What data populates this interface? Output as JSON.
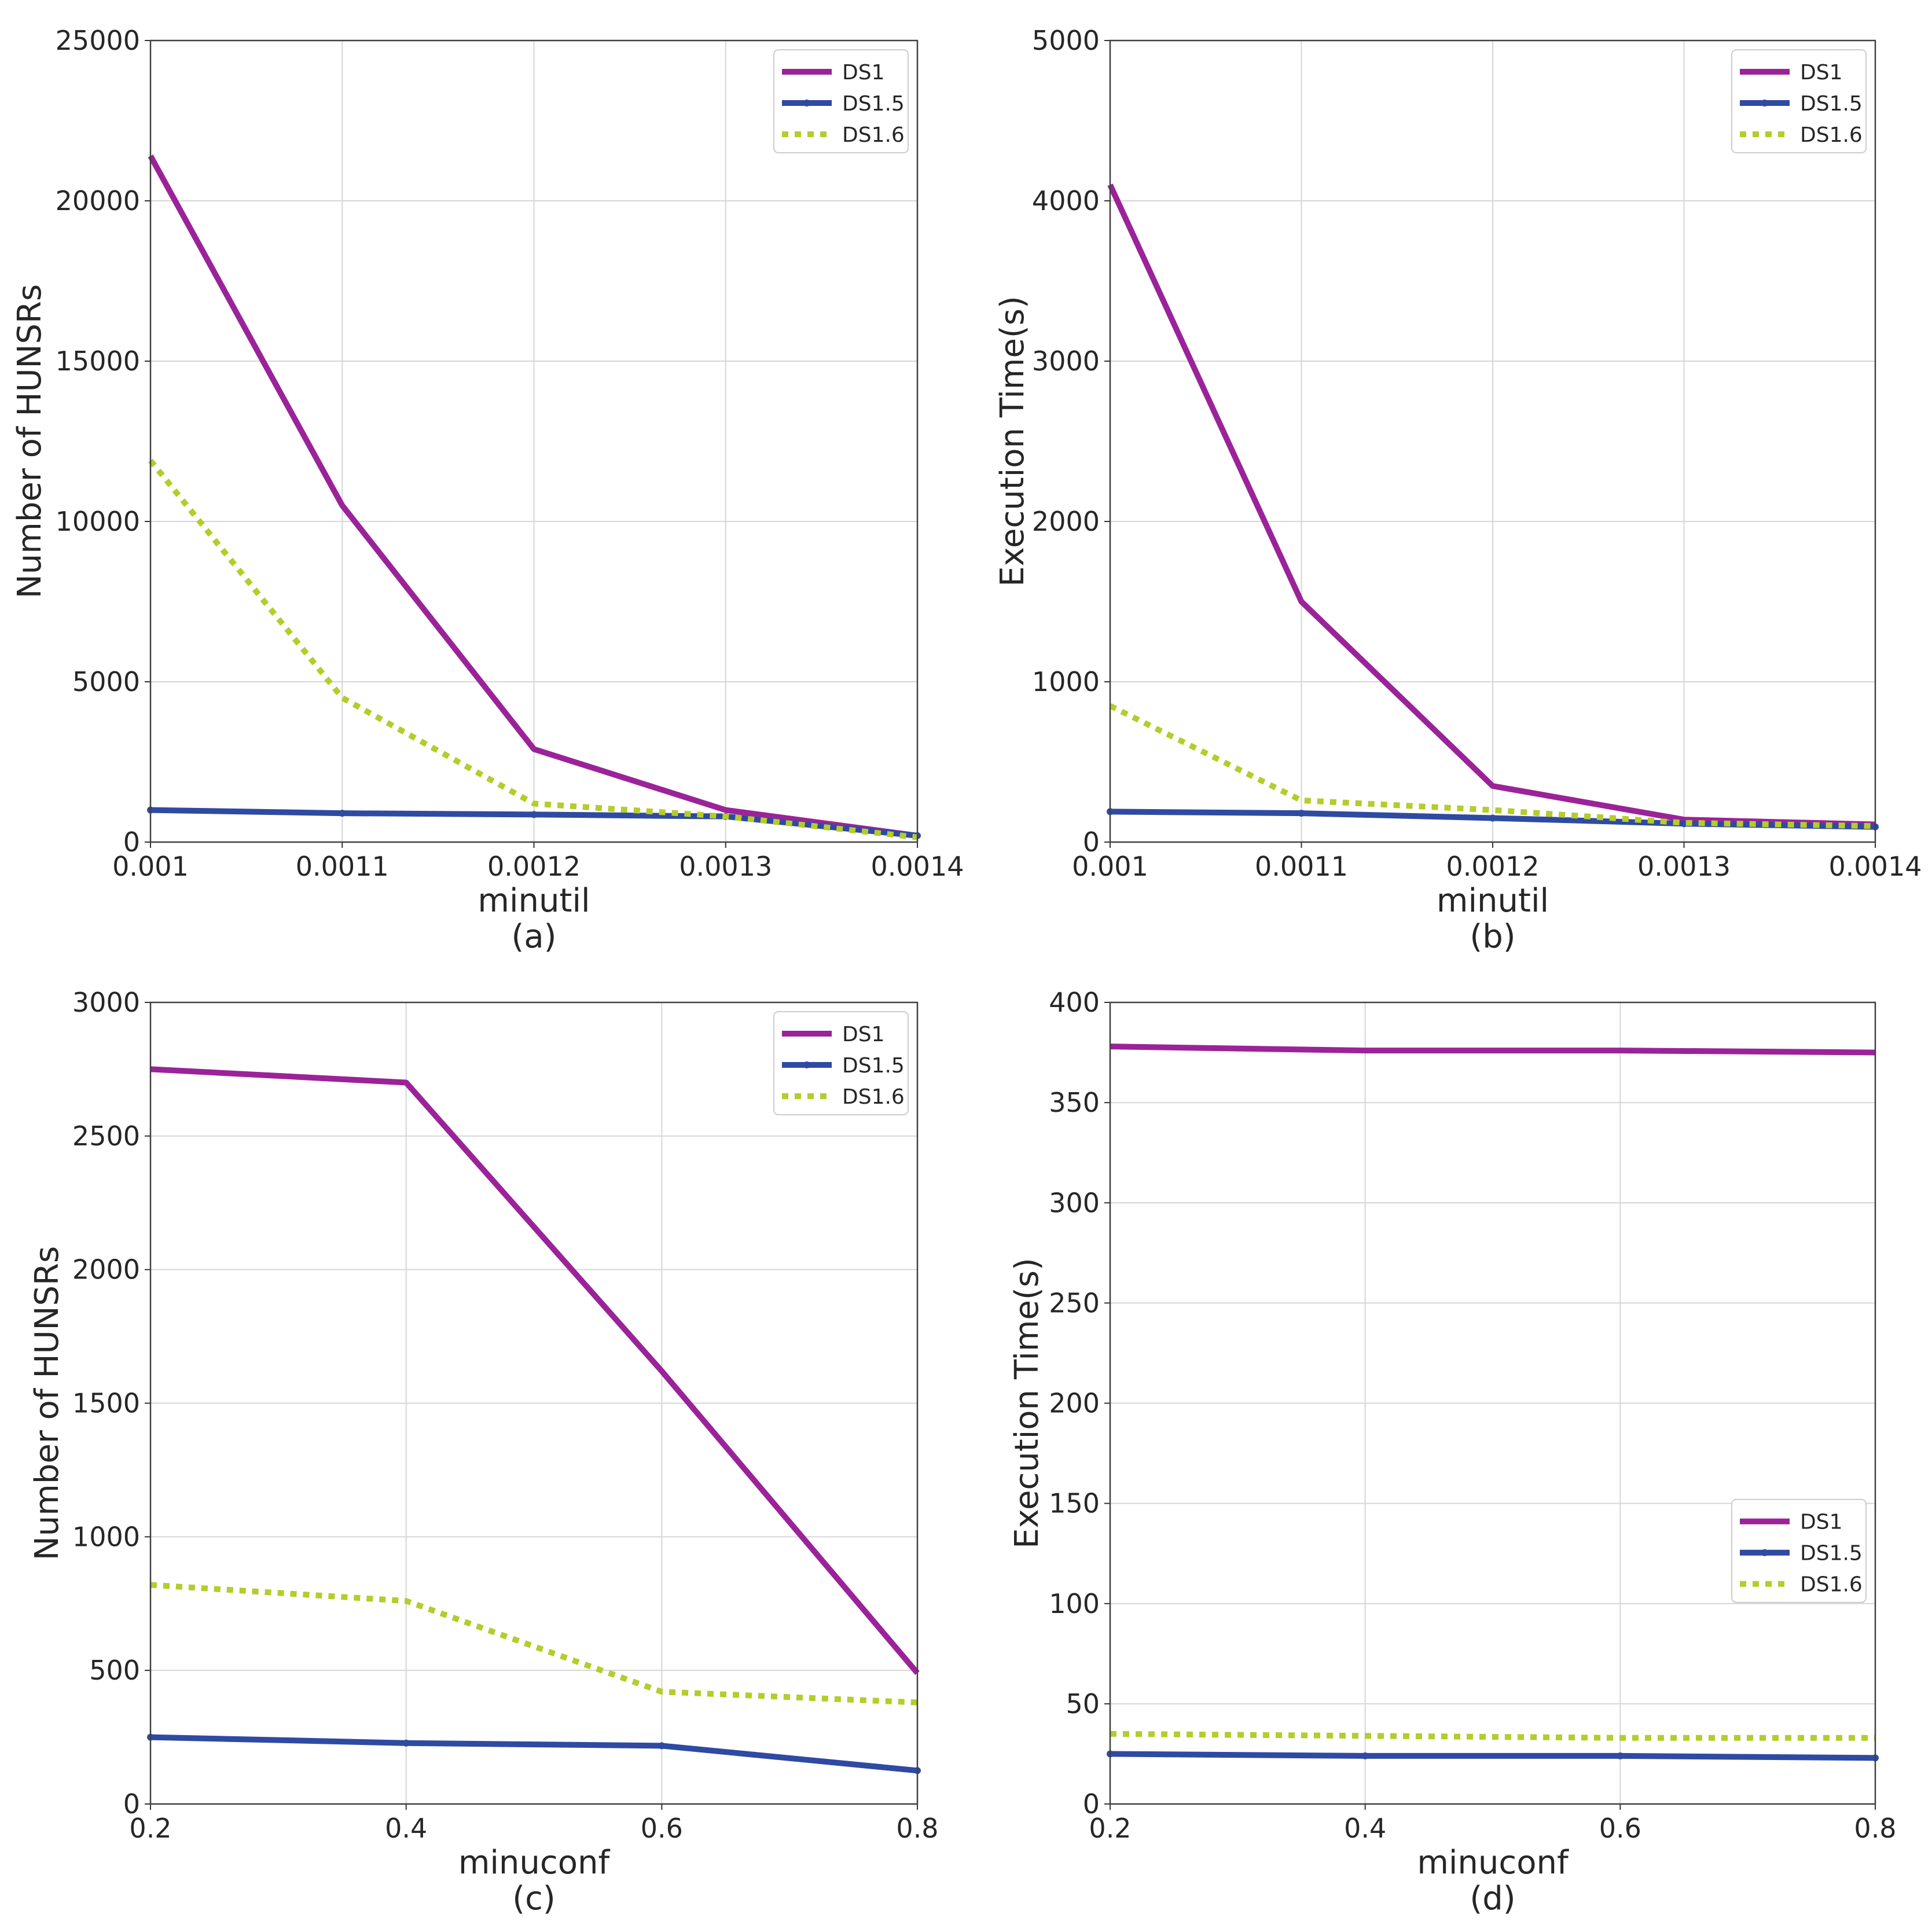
{
  "colors": {
    "DS1": "#9b2399",
    "DS1.5": "#2f4aa2",
    "DS1.6": "#b5cc2a"
  },
  "chart_data": [
    {
      "type": "line",
      "subtitle": "(a)",
      "xlabel": "minutil",
      "ylabel": "Number of HUNSRs",
      "x": [
        0.001,
        0.0011,
        0.0012,
        0.0013,
        0.0014
      ],
      "xticks": [
        "0.001",
        "0.0011",
        "0.0012",
        "0.0013",
        "0.0014"
      ],
      "xlim": [
        0.001,
        0.0014
      ],
      "ylim": [
        0,
        25000
      ],
      "yticks": [
        "0",
        "5000",
        "10000",
        "15000",
        "20000",
        "25000"
      ],
      "legend": "top-right",
      "series": [
        {
          "name": "DS1",
          "values": [
            21400,
            10500,
            2900,
            1000,
            200
          ]
        },
        {
          "name": "DS1.5",
          "values": [
            1000,
            900,
            860,
            800,
            200
          ]
        },
        {
          "name": "DS1.6",
          "values": [
            11900,
            4500,
            1200,
            800,
            150
          ]
        }
      ]
    },
    {
      "type": "line",
      "subtitle": "(b)",
      "xlabel": "minutil",
      "ylabel": "Execution Time(s)",
      "x": [
        0.001,
        0.0011,
        0.0012,
        0.0013,
        0.0014
      ],
      "xticks": [
        "0.001",
        "0.0011",
        "0.0012",
        "0.0013",
        "0.0014"
      ],
      "xlim": [
        0.001,
        0.0014
      ],
      "ylim": [
        0,
        5000
      ],
      "yticks": [
        "0",
        "1000",
        "2000",
        "3000",
        "4000",
        "5000"
      ],
      "legend": "top-right",
      "series": [
        {
          "name": "DS1",
          "values": [
            4100,
            1500,
            350,
            140,
            110
          ]
        },
        {
          "name": "DS1.5",
          "values": [
            190,
            180,
            150,
            115,
            95
          ]
        },
        {
          "name": "DS1.6",
          "values": [
            850,
            260,
            200,
            120,
            100
          ]
        }
      ]
    },
    {
      "type": "line",
      "subtitle": "(c)",
      "xlabel": "minuconf",
      "ylabel": "Number of HUNSRs",
      "x": [
        0.2,
        0.4,
        0.6,
        0.8
      ],
      "xticks": [
        "0.2",
        "0.4",
        "0.6",
        "0.8"
      ],
      "xlim": [
        0.2,
        0.8
      ],
      "ylim": [
        0,
        3000
      ],
      "yticks": [
        "0",
        "500",
        "1000",
        "1500",
        "2000",
        "2500",
        "3000"
      ],
      "legend": "top-right",
      "series": [
        {
          "name": "DS1",
          "values": [
            2750,
            2700,
            1620,
            490
          ]
        },
        {
          "name": "DS1.5",
          "values": [
            250,
            228,
            218,
            125
          ]
        },
        {
          "name": "DS1.6",
          "values": [
            820,
            760,
            420,
            380
          ]
        }
      ]
    },
    {
      "type": "line",
      "subtitle": "(d)",
      "xlabel": "minuconf",
      "ylabel": "Execution Time(s)",
      "x": [
        0.2,
        0.4,
        0.6,
        0.8
      ],
      "xticks": [
        "0.2",
        "0.4",
        "0.6",
        "0.8"
      ],
      "xlim": [
        0.2,
        0.8
      ],
      "ylim": [
        0,
        400
      ],
      "yticks": [
        "0",
        "50",
        "100",
        "150",
        "200",
        "250",
        "300",
        "350",
        "400"
      ],
      "legend": "center-right",
      "series": [
        {
          "name": "DS1",
          "values": [
            378,
            376,
            376,
            375
          ]
        },
        {
          "name": "DS1.5",
          "values": [
            25,
            24,
            24,
            23
          ]
        },
        {
          "name": "DS1.6",
          "values": [
            35,
            34,
            33,
            33
          ]
        }
      ]
    }
  ]
}
